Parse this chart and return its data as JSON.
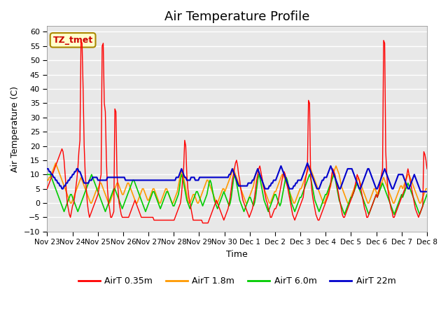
{
  "title": "Air Temperature Profile",
  "xlabel": "Time",
  "ylabel": "Air Temperature (C)",
  "ylim": [
    -10,
    62
  ],
  "yticks": [
    -10,
    -5,
    0,
    5,
    10,
    15,
    20,
    25,
    30,
    35,
    40,
    45,
    50,
    55,
    60
  ],
  "x_labels": [
    "Nov 23",
    "Nov 24",
    "Nov 25",
    "Nov 26",
    "Nov 27",
    "Nov 28",
    "Nov 29",
    "Nov 30",
    "Dec 1",
    "Dec 2",
    "Dec 3",
    "Dec 4",
    "Dec 5",
    "Dec 6",
    "Dec 7",
    "Dec 8"
  ],
  "background_color": "#e8e8e8",
  "title_fontsize": 13,
  "annotation_text": "TZ_tmet",
  "annotation_color": "#cc0000",
  "annotation_bg": "#ffffcc",
  "line_colors": {
    "red": "#ff0000",
    "orange": "#ff9900",
    "green": "#00cc00",
    "blue": "#0000cc"
  },
  "legend_labels": [
    "AirT 0.35m",
    "AirT 1.8m",
    "AirT 6.0m",
    "AirT 22m"
  ]
}
